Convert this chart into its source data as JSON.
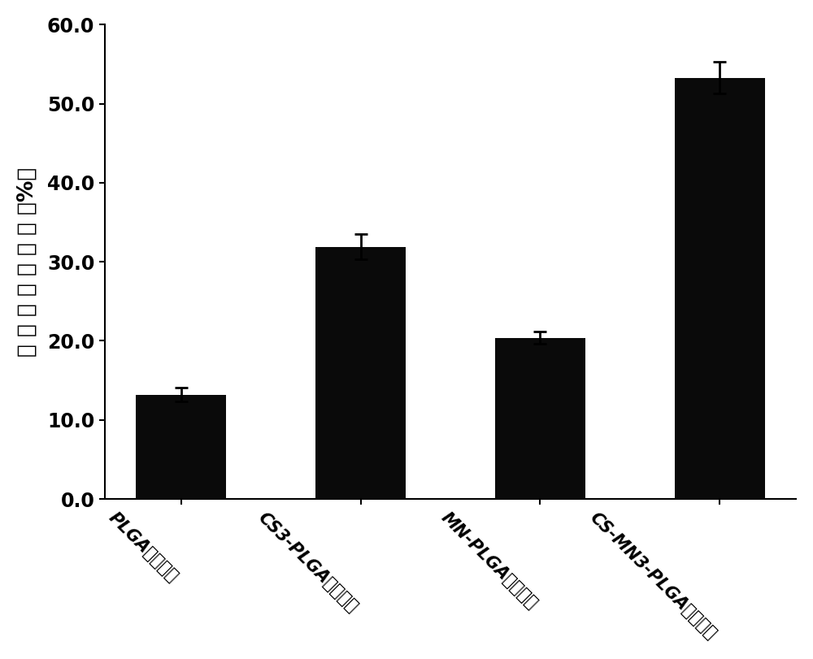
{
  "categories": [
    "PLGA纳米颗粒",
    "CS3-PLGA纳米颗粒",
    "MN-PLGA纳米颗粒",
    "CS-MN3-PLGA纳米颗粒"
  ],
  "values": [
    13.2,
    31.9,
    20.4,
    53.3
  ],
  "errors": [
    0.9,
    1.6,
    0.8,
    2.0
  ],
  "bar_color": "#0a0a0a",
  "ylabel": "纳 米 颗 粒 摄 取 率 （%）",
  "ylim": [
    0,
    60
  ],
  "yticks": [
    0.0,
    10.0,
    20.0,
    30.0,
    40.0,
    50.0,
    60.0
  ],
  "bar_width": 0.5,
  "figsize": [
    10.0,
    8.11
  ],
  "dpi": 100,
  "background_color": "#ffffff",
  "tick_fontsize": 17,
  "ylabel_fontsize": 19,
  "xtick_fontsize": 15,
  "xlabel_rotation": -45
}
